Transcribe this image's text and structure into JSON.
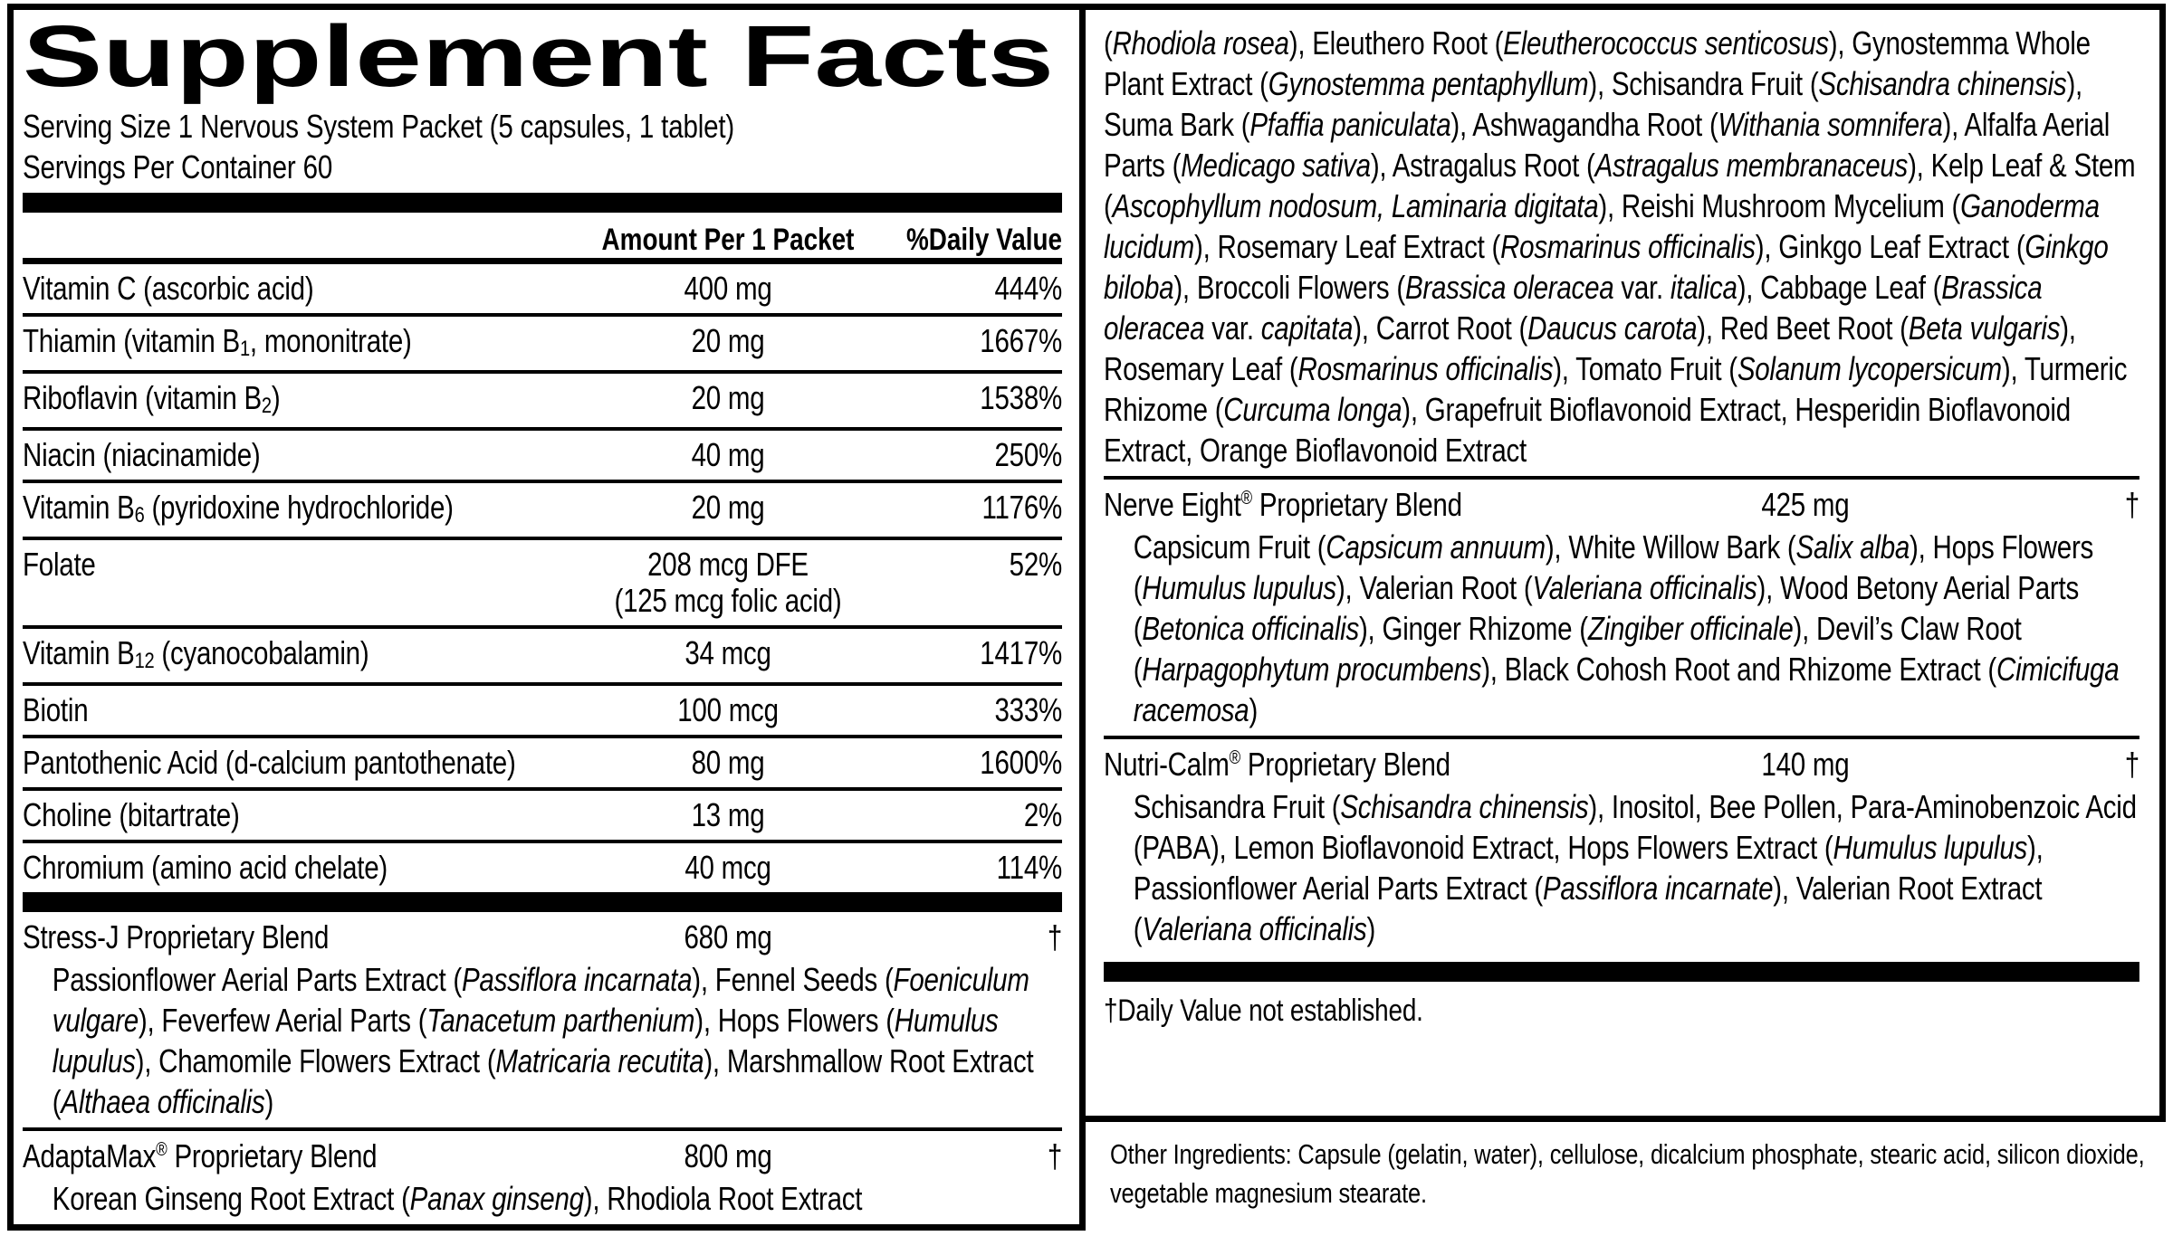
{
  "label": {
    "title": "Supplement Facts",
    "serving_size": "Serving Size 1 Nervous System Packet (5 capsules, 1 tablet)",
    "servings_per_container": "Servings Per Container 60",
    "columns": {
      "amount": "Amount Per 1 Packet",
      "dv": "%Daily Value"
    },
    "rows": [
      {
        "name": "Vitamin C (ascorbic acid)",
        "amount": "400 mg",
        "dv": "444%"
      },
      {
        "name": "Thiamin (vitamin B<sub>1</sub>, mononitrate)",
        "amount": "20 mg",
        "dv": "1667%"
      },
      {
        "name": "Riboflavin (vitamin B<sub>2</sub>)",
        "amount": "20 mg",
        "dv": "1538%"
      },
      {
        "name": "Niacin (niacinamide)",
        "amount": "40 mg",
        "dv": "250%"
      },
      {
        "name": "Vitamin B<sub>6</sub> (pyridoxine hydrochloride)",
        "amount": "20 mg",
        "dv": "1176%"
      },
      {
        "name": "Folate",
        "amount": "208 mcg DFE<br>(125 mcg folic acid)",
        "dv": "52%"
      },
      {
        "name": "Vitamin B<sub>12</sub> (cyanocobalamin)",
        "amount": "34 mcg",
        "dv": "1417%"
      },
      {
        "name": "Biotin",
        "amount": "100 mcg",
        "dv": "333%"
      },
      {
        "name": "Pantothenic Acid (d-calcium pantothenate)",
        "amount": "80 mg",
        "dv": "1600%"
      },
      {
        "name": "Choline (bitartrate)",
        "amount": "13 mg",
        "dv": "2%"
      },
      {
        "name": "Chromium (amino acid chelate)",
        "amount": "40 mcg",
        "dv": "114%"
      }
    ],
    "blends": [
      {
        "name": "Stress-J Proprietary Blend",
        "amount": "680 mg",
        "dv": "†",
        "ingredients": "Passionflower Aerial Parts Extract (<i>Passiflora incarnata</i>), Fennel Seeds (<i>Foeniculum vulgare</i>), Feverfew Aerial Parts (<i>Tanacetum parthenium</i>), Hops Flowers (<i>Humulus lupulus</i>), Chamomile Flowers Extract (<i>Matricaria recutita</i>), Marshmallow Root Extract (<i>Althaea officinalis</i>)"
      },
      {
        "name": "AdaptaMax<sup>®</sup> Proprietary Blend",
        "amount": "800 mg",
        "dv": "†",
        "ingredients": "Korean Ginseng Root Extract (<i>Panax ginseng</i>), Rhodiola Root Extract"
      },
      {
        "name": "Nerve Eight<sup>®</sup> Proprietary Blend",
        "amount": "425 mg",
        "dv": "†",
        "ingredients": "Capsicum Fruit (<i>Capsicum annuum</i>), White Willow Bark (<i>Salix alba</i>), Hops Flowers (<i>Humulus lupulus</i>), Valerian Root (<i>Valeriana officinalis</i>), Wood Betony Aerial Parts (<i>Betonica officinalis</i>), Ginger Rhizome (<i>Zingiber officinale</i>), Devil’s Claw Root (<i>Harpagophytum procumbens</i>), Black Cohosh Root and Rhizome Extract (<i>Cimicifuga racemosa</i>)"
      },
      {
        "name": "Nutri-Calm<sup>®</sup> Proprietary Blend",
        "amount": "140 mg",
        "dv": "†",
        "ingredients": "Schisandra Fruit (<i>Schisandra chinensis</i>), Inositol, Bee Pollen, Para-Aminobenzoic Acid (PABA), Lemon Bioflavonoid Extract, Hops Flowers Extract (<i>Humulus lupulus</i>), Passionflower Aerial Parts Extract (<i>Passiflora incarnate</i>), Valerian Root Extract (<i>Valeriana officinalis</i>)"
      }
    ],
    "adaptamax_continuation": "(<i>Rhodiola rosea</i>), Eleuthero Root (<i>Eleutherococcus senticosus</i>), Gynostemma Whole Plant Extract (<i>Gynostemma pentaphyllum</i>), Schisandra Fruit (<i>Schisandra chinensis</i>), Suma Bark (<i>Pfaffia paniculata</i>), Ashwagandha Root (<i>Withania somnifera</i>), Alfalfa Aerial Parts (<i>Medicago sativa</i>), Astragalus Root (<i>Astragalus membranaceus</i>), Kelp Leaf &amp; Stem (<i>Ascophyllum nodosum, Laminaria digitata</i>), Reishi Mushroom Mycelium (<i>Ganoderma lucidum</i>), Rosemary Leaf Extract (<i>Rosmarinus officinalis</i>), Ginkgo Leaf Extract (<i>Ginkgo biloba</i>), Broccoli Flowers (<i>Brassica oleracea</i> var. <i>italica</i>), Cabbage Leaf (<i>Brassica oleracea</i> var. <i>capitata</i>), Carrot Root (<i>Daucus carota</i>), Red Beet Root (<i>Beta vulgaris</i>), Rosemary Leaf (<i>Rosmarinus officinalis</i>), Tomato Fruit (<i>Solanum lycopersicum</i>), Turmeric Rhizome (<i>Curcuma longa</i>), Grapefruit Bioflavonoid Extract, Hesperidin Bioflavonoid Extract, Orange Bioflavonoid Extract",
    "footnote": "†Daily Value not established.",
    "other_ingredients": "Other Ingredients: Capsule (gelatin, water), cellulose, dicalcium phosphate, stearic acid, silicon dioxide, vegetable magnesium stearate.",
    "ink_color": "#000000",
    "background_color": "#ffffff"
  }
}
